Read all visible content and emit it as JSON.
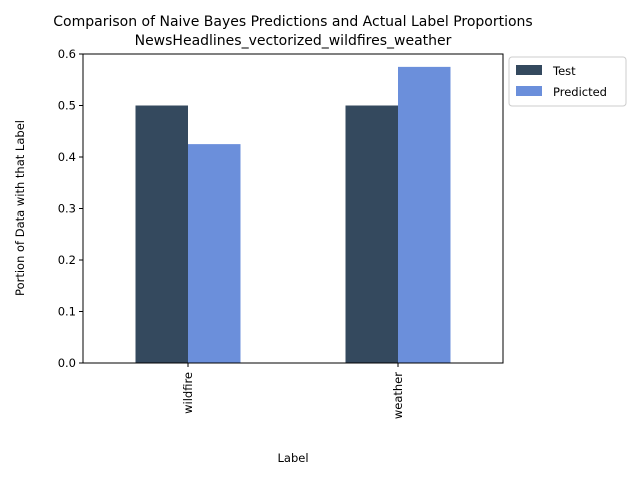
{
  "chart_data": {
    "type": "bar",
    "title": "Comparison of Naive Bayes Predictions and Actual Label Proportions",
    "subtitle": "NewsHeadlines_vectorized_wildfires_weather",
    "xlabel": "Label",
    "ylabel": "Portion of Data with that Label",
    "categories": [
      "wildfire",
      "weather"
    ],
    "series": [
      {
        "name": "Test",
        "values": [
          0.5,
          0.5
        ],
        "color": "#34495e"
      },
      {
        "name": "Predicted",
        "values": [
          0.425,
          0.575
        ],
        "color": "#6b8fdb"
      }
    ],
    "ylim": [
      0,
      0.6
    ],
    "yticks": [
      "0.0",
      "0.1",
      "0.2",
      "0.3",
      "0.4",
      "0.5",
      "0.6"
    ],
    "grid": false,
    "legend_position": "upper right, outside plot area",
    "x_tick_rotation": "vertical"
  }
}
